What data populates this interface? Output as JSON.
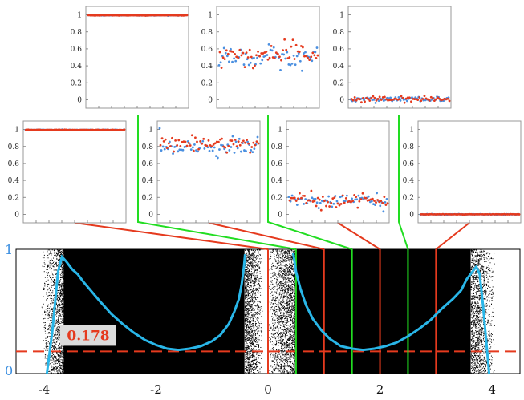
{
  "chart_data": {
    "type": "scatter",
    "main": {
      "xlim": [
        -4.5,
        4.5
      ],
      "ylim": [
        0,
        1
      ],
      "xticks": [
        "-4",
        "-2",
        "0",
        "2",
        "4"
      ],
      "yticks": [
        "1",
        "0"
      ],
      "curve_color": "#29b6e8",
      "dash_value": 0.178,
      "dash_label": "0.178",
      "dash_color": "#e53a1e",
      "scatter_color": "#000000",
      "curve": [
        [
          -3.95,
          0.0
        ],
        [
          -3.85,
          0.35
        ],
        [
          -3.75,
          0.82
        ],
        [
          -3.68,
          0.94
        ],
        [
          -3.6,
          0.9
        ],
        [
          -3.5,
          0.84
        ],
        [
          -3.4,
          0.8
        ],
        [
          -3.3,
          0.74
        ],
        [
          -3.15,
          0.66
        ],
        [
          -3.0,
          0.58
        ],
        [
          -2.8,
          0.48
        ],
        [
          -2.6,
          0.4
        ],
        [
          -2.4,
          0.33
        ],
        [
          -2.2,
          0.27
        ],
        [
          -2.0,
          0.23
        ],
        [
          -1.8,
          0.2
        ],
        [
          -1.6,
          0.19
        ],
        [
          -1.4,
          0.2
        ],
        [
          -1.2,
          0.22
        ],
        [
          -1.0,
          0.26
        ],
        [
          -0.85,
          0.31
        ],
        [
          -0.7,
          0.4
        ],
        [
          -0.6,
          0.5
        ],
        [
          -0.52,
          0.6
        ],
        [
          -0.47,
          0.72
        ],
        [
          -0.43,
          0.86
        ],
        [
          -0.41,
          0.96
        ],
        [
          0.45,
          0.97
        ],
        [
          0.5,
          0.82
        ],
        [
          0.58,
          0.68
        ],
        [
          0.68,
          0.55
        ],
        [
          0.8,
          0.44
        ],
        [
          0.95,
          0.35
        ],
        [
          1.1,
          0.28
        ],
        [
          1.3,
          0.22
        ],
        [
          1.5,
          0.2
        ],
        [
          1.7,
          0.19
        ],
        [
          1.9,
          0.2
        ],
        [
          2.1,
          0.22
        ],
        [
          2.3,
          0.25
        ],
        [
          2.5,
          0.3
        ],
        [
          2.7,
          0.36
        ],
        [
          2.9,
          0.43
        ],
        [
          3.1,
          0.52
        ],
        [
          3.3,
          0.6
        ],
        [
          3.45,
          0.67
        ],
        [
          3.55,
          0.76
        ],
        [
          3.65,
          0.82
        ],
        [
          3.72,
          0.86
        ],
        [
          3.78,
          0.8
        ],
        [
          3.84,
          0.55
        ],
        [
          3.9,
          0.25
        ],
        [
          3.95,
          0.0
        ]
      ],
      "green_lines_x": [
        0.5,
        1.5,
        2.5
      ],
      "red_lines_x": [
        0.0,
        1.0,
        2.0,
        3.0
      ],
      "green_color": "#22dd22",
      "red_color": "#e53a1e"
    },
    "insets": [
      {
        "ylim": [
          -0.1,
          1.1
        ],
        "yticks": [
          "1",
          "0.8",
          "0.6",
          "0.4",
          "0.2",
          "0"
        ],
        "red_mean": 0.995,
        "red_spread": 0.003,
        "blue_mean": 0.995,
        "blue_spread": 0.003,
        "connects_to": "green",
        "line_x": 0.5
      },
      {
        "ylim": [
          -0.1,
          1.1
        ],
        "yticks": [
          "1",
          "0.8",
          "0.6",
          "0.4",
          "0.2",
          "0"
        ],
        "red_mean": 0.53,
        "red_spread": 0.13,
        "blue_mean": 0.5,
        "blue_spread": 0.13,
        "connects_to": "green",
        "line_x": 1.5
      },
      {
        "ylim": [
          -0.1,
          1.1
        ],
        "yticks": [
          "1",
          "0.8",
          "0.6",
          "0.4",
          "0.2",
          "0"
        ],
        "red_mean": 0.005,
        "red_spread": 0.035,
        "blue_mean": 0.005,
        "blue_spread": 0.035,
        "connects_to": "green",
        "line_x": 2.5
      },
      {
        "ylim": [
          -0.1,
          1.1
        ],
        "yticks": [
          "1",
          "0.8",
          "0.6",
          "0.4",
          "0.2",
          "0"
        ],
        "red_mean": 0.995,
        "red_spread": 0.003,
        "blue_mean": 0.995,
        "blue_spread": 0.003,
        "connects_to": "red",
        "line_x": 0.0
      },
      {
        "ylim": [
          -0.1,
          1.1
        ],
        "yticks": [
          "1",
          "0.8",
          "0.6",
          "0.4",
          "0.2",
          "0"
        ],
        "red_mean": 0.84,
        "red_spread": 0.08,
        "blue_mean": 0.8,
        "blue_spread": 0.1,
        "connects_to": "red",
        "line_x": 1.0
      },
      {
        "ylim": [
          -0.1,
          1.1
        ],
        "yticks": [
          "1",
          "0.8",
          "0.6",
          "0.4",
          "0.2",
          "0"
        ],
        "red_mean": 0.16,
        "red_spread": 0.09,
        "blue_mean": 0.16,
        "blue_spread": 0.09,
        "connects_to": "red",
        "line_x": 2.0
      },
      {
        "ylim": [
          -0.1,
          1.1
        ],
        "yticks": [
          "1",
          "0.8",
          "0.6",
          "0.4",
          "0.2",
          "0"
        ],
        "red_mean": 0.0,
        "red_spread": 0.003,
        "blue_mean": 0.0,
        "blue_spread": 0.003,
        "connects_to": "red",
        "line_x": 3.0
      }
    ],
    "inset_point_colors": {
      "red": "#e53a1e",
      "blue": "#4a8fe0"
    }
  }
}
